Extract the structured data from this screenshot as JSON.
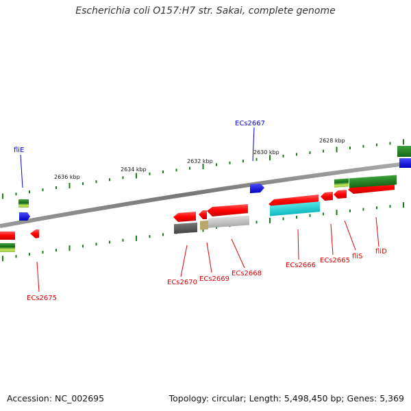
{
  "title": "Escherichia coli O157:H7 str. Sakai, complete genome",
  "footer": {
    "accession": "Accession: NC_002695",
    "summary": "Topology: circular; Length: 5,498,450 bp; Genes: 5,369"
  },
  "scale_labels": [
    "2636 kbp",
    "2634 kbp",
    "2632 kbp",
    "2630 kbp",
    "2628 kbp"
  ],
  "gene_labels": {
    "blue": [
      "fliE",
      "ECs2667"
    ],
    "red": [
      "ECs2675",
      "ECs2670",
      "ECs2669",
      "ECs2668",
      "ECs2666",
      "ECs2665",
      "fliS",
      "fliD"
    ]
  },
  "colors": {
    "forward_cds": "#0000ff",
    "reverse_cds": "#ff0000",
    "backbone": "#808080",
    "ticks": "#1a7a1a",
    "label_blue": "#0000cc",
    "label_red": "#dd0000"
  }
}
